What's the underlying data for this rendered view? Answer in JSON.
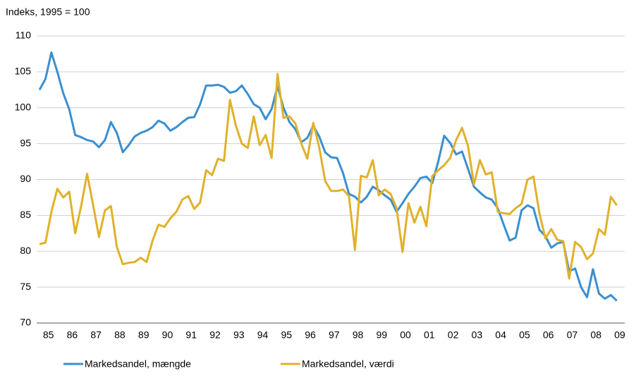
{
  "chart_data": {
    "type": "line",
    "y_axis_title": "Indeks, 1995 = 100",
    "categories": [
      "85",
      null,
      null,
      null,
      "86",
      null,
      null,
      null,
      "87",
      null,
      null,
      null,
      "88",
      null,
      null,
      null,
      "89",
      null,
      null,
      null,
      "90",
      null,
      null,
      null,
      "91",
      null,
      null,
      null,
      "92",
      null,
      null,
      null,
      "93",
      null,
      null,
      null,
      "94",
      null,
      null,
      null,
      "95",
      null,
      null,
      null,
      "96",
      null,
      null,
      null,
      "97",
      null,
      null,
      null,
      "98",
      null,
      null,
      null,
      "99",
      null,
      null,
      null,
      "00",
      null,
      null,
      null,
      "01",
      null,
      null,
      null,
      "02",
      null,
      null,
      null,
      "03",
      null,
      null,
      null,
      "04",
      null,
      null,
      null,
      "05",
      null,
      null,
      null,
      "06",
      null,
      null,
      null,
      "07",
      null,
      null,
      null,
      "08",
      null,
      null,
      null,
      "09",
      null
    ],
    "series": [
      {
        "name": "Markedsandel, mængde",
        "color": "#3a8fd0",
        "values": [
          102.5,
          104,
          107.7,
          105,
          102,
          99.8,
          96.2,
          95.9,
          95.5,
          95.3,
          94.5,
          95.5,
          98,
          96.5,
          93.8,
          94.8,
          96,
          96.5,
          96.8,
          97.3,
          98.2,
          97.8,
          96.8,
          97.3,
          98,
          98.6,
          98.7,
          100.5,
          103.1,
          103.1,
          103.2,
          102.9,
          102.1,
          102.3,
          103.1,
          101.9,
          100.5,
          100,
          98.4,
          99.8,
          103,
          100,
          98,
          97,
          95.2,
          95.8,
          97.5,
          96,
          93.8,
          93.1,
          93,
          90.9,
          88,
          87.6,
          86.8,
          87.6,
          89,
          88.5,
          87.8,
          87.2,
          85.5,
          86.7,
          88,
          89,
          90.2,
          90.4,
          89.5,
          92.5,
          96.1,
          95.1,
          93.5,
          93.9,
          91.5,
          89,
          88.2,
          87.5,
          87.2,
          86,
          83.7,
          81.5,
          81.9,
          85.7,
          86.4,
          86,
          83,
          82.1,
          80.5,
          81.1,
          81.3,
          77.2,
          77.6,
          75,
          73.6,
          77.5,
          74.1,
          73.4,
          73.9,
          73.1
        ]
      },
      {
        "name": "Markedsandel, værdi",
        "color": "#e0b12a",
        "values": [
          81,
          81.2,
          85.5,
          88.7,
          87.5,
          88.3,
          82.5,
          86.3,
          90.8,
          86.5,
          82,
          85.7,
          86.3,
          80.6,
          78.2,
          78.4,
          78.5,
          79.1,
          78.5,
          81.5,
          83.7,
          83.4,
          84.6,
          85.5,
          87.2,
          87.7,
          85.9,
          86.8,
          91.3,
          90.6,
          92.9,
          92.6,
          101.1,
          97.5,
          95,
          94.4,
          98.8,
          94.8,
          96.2,
          93,
          104.7,
          98.6,
          98.8,
          97.8,
          95,
          92.9,
          97.9,
          94.5,
          89.8,
          88.4,
          88.4,
          88.6,
          87.7,
          80.2,
          90.5,
          90.3,
          92.7,
          87.8,
          88.6,
          88,
          86,
          79.9,
          86.7,
          84,
          86.2,
          83.5,
          90.5,
          91.3,
          92,
          93,
          95.5,
          97.2,
          94.7,
          89.3,
          92.7,
          90.7,
          91,
          85.5,
          85.3,
          85.2,
          86,
          86.6,
          90,
          90.4,
          85.3,
          81.8,
          83.1,
          81.6,
          81.4,
          76.2,
          81.3,
          80.6,
          78.9,
          79.7,
          83.1,
          82.3,
          87.6,
          86.4
        ]
      }
    ],
    "ylim": [
      70,
      110
    ],
    "yticks": [
      70,
      75,
      80,
      85,
      90,
      95,
      100,
      105,
      110
    ],
    "grid": true
  }
}
